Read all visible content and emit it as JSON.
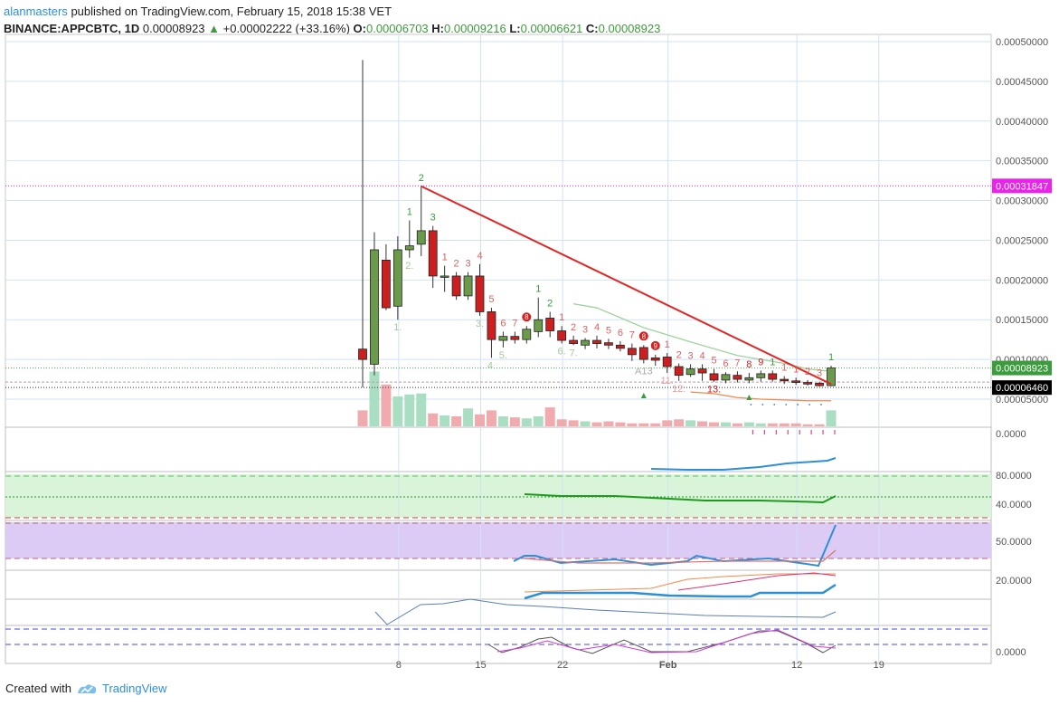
{
  "header": {
    "publisher": "alanmasters",
    "published_text": "published on TradingView.com, February 15, 2018 15:38 VET",
    "symbol": "BINANCE:APPCBTC, 1D",
    "last": "0.00008923",
    "change": "+0.00002222 (+33.16%)",
    "o_label": "O:",
    "o_val": "0.00006703",
    "h_label": "H:",
    "h_val": "0.00009216",
    "l_label": "L:",
    "l_val": "0.00006621",
    "c_label": "C:",
    "c_val": "0.00008923"
  },
  "footer": {
    "created_with": "Created with",
    "brand": "TradingView"
  },
  "colors": {
    "up": "#6a9a4a",
    "down": "#cc1f1f",
    "trendline": "#e32626",
    "magenta": "#ea23ea",
    "green_price": "#3c9b3c",
    "grid": "#cfe2f7"
  },
  "chart_data": {
    "type": "candlestick",
    "x_ticks": [
      "8",
      "15",
      "22",
      "Feb",
      "12",
      "19"
    ],
    "price_axis": [
      "0.00050000",
      "0.00045000",
      "0.00040000",
      "0.00035000",
      "0.00030000",
      "0.00025000",
      "0.00020000",
      "0.00015000",
      "0.00010000",
      "0.00005000"
    ],
    "ylim": [
      4e-05,
      0.0005
    ],
    "price_labels": [
      {
        "value": 0.00031847,
        "text": "0.00031847",
        "color": "#ea23ea"
      },
      {
        "value": 8.923e-05,
        "text": "0.00008923",
        "color": "#3c9b3c"
      },
      {
        "value": 6.46e-05,
        "text": "0.00006460",
        "color": "#000000"
      }
    ],
    "candles": [
      {
        "o": 0.000113,
        "h": 0.000477,
        "l": 6.5e-05,
        "c": 0.0001
      },
      {
        "o": 9.4e-05,
        "h": 0.00026,
        "l": 8e-05,
        "c": 0.000238
      },
      {
        "o": 0.000225,
        "h": 0.000245,
        "l": 0.000162,
        "c": 0.000165
      },
      {
        "o": 0.000167,
        "h": 0.000255,
        "l": 0.00015,
        "c": 0.000238
      },
      {
        "o": 0.000238,
        "h": 0.000275,
        "l": 0.000228,
        "c": 0.000243
      },
      {
        "o": 0.000245,
        "h": 0.000318,
        "l": 0.00023,
        "c": 0.000262
      },
      {
        "o": 0.000262,
        "h": 0.000268,
        "l": 0.00019,
        "c": 0.000205
      },
      {
        "o": 0.000205,
        "h": 0.000218,
        "l": 0.000185,
        "c": 0.000205
      },
      {
        "o": 0.000205,
        "h": 0.00021,
        "l": 0.000175,
        "c": 0.00018
      },
      {
        "o": 0.00018,
        "h": 0.00021,
        "l": 0.000175,
        "c": 0.000205
      },
      {
        "o": 0.000205,
        "h": 0.00022,
        "l": 0.000155,
        "c": 0.00016
      },
      {
        "o": 0.00016,
        "h": 0.000165,
        "l": 0.000102,
        "c": 0.000125
      },
      {
        "o": 0.000124,
        "h": 0.000135,
        "l": 0.000115,
        "c": 0.000129
      },
      {
        "o": 0.000129,
        "h": 0.000135,
        "l": 0.00012,
        "c": 0.000125
      },
      {
        "o": 0.000125,
        "h": 0.000142,
        "l": 0.00012,
        "c": 0.000138
      },
      {
        "o": 0.000135,
        "h": 0.000178,
        "l": 0.000128,
        "c": 0.00015
      },
      {
        "o": 0.000152,
        "h": 0.00016,
        "l": 0.000128,
        "c": 0.000136
      },
      {
        "o": 0.000136,
        "h": 0.000142,
        "l": 0.00012,
        "c": 0.000124
      },
      {
        "o": 0.000124,
        "h": 0.00013,
        "l": 0.000118,
        "c": 0.00012
      },
      {
        "o": 0.000118,
        "h": 0.000127,
        "l": 0.000113,
        "c": 0.000124
      },
      {
        "o": 0.000124,
        "h": 0.00013,
        "l": 0.000114,
        "c": 0.00012
      },
      {
        "o": 0.000121,
        "h": 0.000126,
        "l": 0.000113,
        "c": 0.000118
      },
      {
        "o": 0.000118,
        "h": 0.000123,
        "l": 0.00011,
        "c": 0.000114
      },
      {
        "o": 0.000114,
        "h": 0.00012,
        "l": 9.8e-05,
        "c": 0.000106
      },
      {
        "o": 0.000115,
        "h": 0.000118,
        "l": 9.5e-05,
        "c": 0.0001
      },
      {
        "o": 0.000102,
        "h": 0.000106,
        "l": 9.2e-05,
        "c": 9.9e-05
      },
      {
        "o": 0.000103,
        "h": 0.000108,
        "l": 8.3e-05,
        "c": 9.1e-05
      },
      {
        "o": 9.1e-05,
        "h": 9.5e-05,
        "l": 7.3e-05,
        "c": 8e-05
      },
      {
        "o": 8.1e-05,
        "h": 9.4e-05,
        "l": 7.8e-05,
        "c": 8.8e-05
      },
      {
        "o": 8.8e-05,
        "h": 9.4e-05,
        "l": 7.3e-05,
        "c": 8.3e-05
      },
      {
        "o": 8.2e-05,
        "h": 8.8e-05,
        "l": 7.2e-05,
        "c": 7.4e-05
      },
      {
        "o": 7.4e-05,
        "h": 8.4e-05,
        "l": 7e-05,
        "c": 8.1e-05
      },
      {
        "o": 8e-05,
        "h": 8.5e-05,
        "l": 7.1e-05,
        "c": 7.5e-05
      },
      {
        "o": 7.4e-05,
        "h": 8.3e-05,
        "l": 7e-05,
        "c": 7.7e-05
      },
      {
        "o": 7.7e-05,
        "h": 8.6e-05,
        "l": 7.2e-05,
        "c": 8.2e-05
      },
      {
        "o": 8.2e-05,
        "h": 8.6e-05,
        "l": 7.2e-05,
        "c": 7.5e-05
      },
      {
        "o": 7.5e-05,
        "h": 7.9e-05,
        "l": 6.9e-05,
        "c": 7.3e-05
      },
      {
        "o": 7.3e-05,
        "h": 7.7e-05,
        "l": 6.8e-05,
        "c": 7.1e-05
      },
      {
        "o": 7.1e-05,
        "h": 7.4e-05,
        "l": 6.7e-05,
        "c": 6.9e-05
      },
      {
        "o": 7e-05,
        "h": 7.2e-05,
        "l": 6.6e-05,
        "c": 6.7e-05
      },
      {
        "o": 6.703e-05,
        "h": 9.216e-05,
        "l": 6.621e-05,
        "c": 8.923e-05
      }
    ],
    "trendline": [
      [
        5,
        0.000318
      ],
      [
        40,
        6.9e-05
      ]
    ],
    "volumes": [
      0.16,
      0.55,
      0.42,
      0.3,
      0.32,
      0.33,
      0.13,
      0.11,
      0.1,
      0.18,
      0.12,
      0.16,
      0.1,
      0.09,
      0.08,
      0.1,
      0.19,
      0.07,
      0.06,
      0.05,
      0.04,
      0.05,
      0.04,
      0.03,
      0.03,
      0.03,
      0.06,
      0.07,
      0.06,
      0.05,
      0.04,
      0.04,
      0.03,
      0.04,
      0.03,
      0.03,
      0.03,
      0.03,
      0.02,
      0.02,
      0.16
    ],
    "volume_axis": [
      "0.0000"
    ],
    "osc_panels": [
      {
        "axis": "0.0000"
      },
      {
        "axis": [
          "80.0000",
          "40.0000"
        ]
      },
      {
        "axis": "50.0000"
      },
      {
        "axis": "20.0000"
      },
      {
        "axis": ""
      },
      {
        "axis": "0.0000"
      }
    ],
    "td_counts": [
      {
        "i": 4,
        "t": "1",
        "c": "#3c9b3c",
        "pos": "above"
      },
      {
        "i": 5,
        "t": "2",
        "c": "#3c9b3c",
        "pos": "above"
      },
      {
        "i": 6,
        "t": "3",
        "c": "#3c9b3c",
        "pos": "above"
      },
      {
        "i": 7,
        "t": "1",
        "c": "#e06060",
        "pos": "above"
      },
      {
        "i": 8,
        "t": "2",
        "c": "#e06060",
        "pos": "above"
      },
      {
        "i": 9,
        "t": "3",
        "c": "#e06060",
        "pos": "above"
      },
      {
        "i": 10,
        "t": "4",
        "c": "#e06060",
        "pos": "above"
      },
      {
        "i": 11,
        "t": "5",
        "c": "#e06060",
        "pos": "above"
      },
      {
        "i": 12,
        "t": "6",
        "c": "#e06060",
        "pos": "above"
      },
      {
        "i": 13,
        "t": "7",
        "c": "#e06060",
        "pos": "above"
      },
      {
        "i": 15,
        "t": "1",
        "c": "#3c9b3c",
        "pos": "above"
      },
      {
        "i": 16,
        "t": "2",
        "c": "#3c9b3c",
        "pos": "above"
      },
      {
        "i": 17,
        "t": "1",
        "c": "#e06060",
        "pos": "above"
      },
      {
        "i": 18,
        "t": "2",
        "c": "#e06060",
        "pos": "above"
      },
      {
        "i": 19,
        "t": "3",
        "c": "#e06060",
        "pos": "above"
      },
      {
        "i": 20,
        "t": "4",
        "c": "#e06060",
        "pos": "above"
      },
      {
        "i": 21,
        "t": "5",
        "c": "#e06060",
        "pos": "above"
      },
      {
        "i": 22,
        "t": "6",
        "c": "#e06060",
        "pos": "above"
      },
      {
        "i": 23,
        "t": "7",
        "c": "#e06060",
        "pos": "above"
      },
      {
        "i": 26,
        "t": "1",
        "c": "#e06060",
        "pos": "above"
      },
      {
        "i": 27,
        "t": "2",
        "c": "#e06060",
        "pos": "above"
      },
      {
        "i": 28,
        "t": "3",
        "c": "#e06060",
        "pos": "above"
      },
      {
        "i": 29,
        "t": "4",
        "c": "#e06060",
        "pos": "above"
      },
      {
        "i": 30,
        "t": "5",
        "c": "#e06060",
        "pos": "above"
      },
      {
        "i": 31,
        "t": "6",
        "c": "#e06060",
        "pos": "above"
      },
      {
        "i": 32,
        "t": "7",
        "c": "#e06060",
        "pos": "above"
      },
      {
        "i": 33,
        "t": "8",
        "c": "#cc1f1f",
        "pos": "above"
      },
      {
        "i": 34,
        "t": "9",
        "c": "#cc1f1f",
        "pos": "above"
      },
      {
        "i": 35,
        "t": "1",
        "c": "#3c9b3c",
        "pos": "above"
      },
      {
        "i": 36,
        "t": "1",
        "c": "#e06060",
        "pos": "above"
      },
      {
        "i": 37,
        "t": "1",
        "c": "#e06060",
        "pos": "above"
      },
      {
        "i": 38,
        "t": "2",
        "c": "#e06060",
        "pos": "above"
      },
      {
        "i": 39,
        "t": "3",
        "c": "#e06060",
        "pos": "above"
      },
      {
        "i": 40,
        "t": "1",
        "c": "#3c9b3c",
        "pos": "above"
      },
      {
        "i": 3,
        "t": "1.",
        "c": "#a8c89a",
        "pos": "below"
      },
      {
        "i": 4,
        "t": "2.",
        "c": "#a8c89a",
        "pos": "below"
      },
      {
        "i": 10,
        "t": "3.",
        "c": "#a8c89a",
        "pos": "below"
      },
      {
        "i": 11,
        "t": "4.",
        "c": "#a8c89a",
        "pos": "below"
      },
      {
        "i": 12,
        "t": "5.",
        "c": "#a8c89a",
        "pos": "below"
      },
      {
        "i": 17,
        "t": "6.",
        "c": "#a8c89a",
        "pos": "below"
      },
      {
        "i": 18,
        "t": "7.",
        "c": "#a8c89a",
        "pos": "below"
      },
      {
        "i": 24,
        "t": "A13",
        "c": "#aaaaaa",
        "pos": "below"
      },
      {
        "i": 26,
        "t": "11.",
        "c": "#e8a0a0",
        "pos": "below"
      },
      {
        "i": 27,
        "t": "12.",
        "c": "#e8a0a0",
        "pos": "below"
      },
      {
        "i": 30,
        "t": "13.",
        "c": "#cc1f1f",
        "pos": "below"
      }
    ],
    "td_badges": [
      {
        "i": 14,
        "t": "8"
      },
      {
        "i": 24,
        "t": "8"
      },
      {
        "i": 25,
        "t": "9"
      }
    ]
  }
}
